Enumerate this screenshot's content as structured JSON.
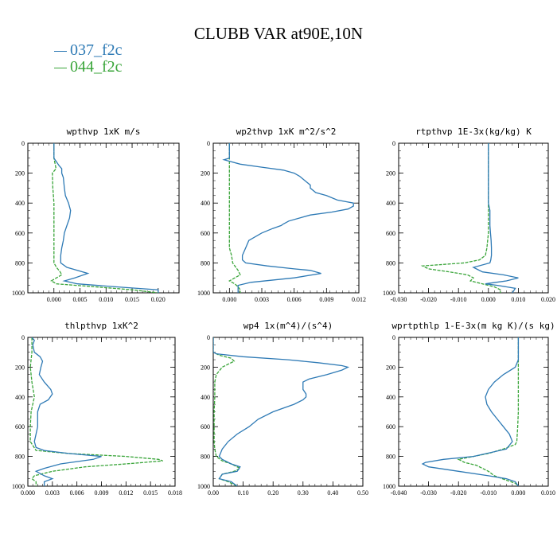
{
  "title": "CLUBB VAR at90E,10N",
  "legend": [
    {
      "label": "037_f2c",
      "color": "#2e7ab5"
    },
    {
      "label": "044_f2c",
      "color": "#3aa53a"
    }
  ],
  "chart_data": [
    {
      "type": "line",
      "title": "wpthvp   1xK m/s",
      "xlim": [
        -0.005,
        0.024
      ],
      "xticks": [
        "0.000",
        "0.005",
        "0.010",
        "0.015",
        "0.020"
      ],
      "xtick_values": [
        0,
        0.005,
        0.01,
        0.015,
        0.02
      ],
      "ylim": [
        1000,
        0
      ],
      "yticks": [
        "0",
        "200",
        "400",
        "600",
        "800",
        "1000"
      ],
      "ytick_values": [
        0,
        200,
        400,
        600,
        800,
        1000
      ],
      "series": [
        {
          "name": "037_f2c",
          "color": "#2e7ab5",
          "y": [
            0,
            100,
            150,
            170,
            200,
            230,
            300,
            350,
            400,
            450,
            500,
            550,
            600,
            650,
            700,
            750,
            800,
            830,
            850,
            870,
            900,
            920,
            940,
            960,
            980,
            1000
          ],
          "x": [
            0,
            0,
            0.001,
            0.0015,
            0.0015,
            0.0018,
            0.002,
            0.0022,
            0.0028,
            0.0032,
            0.003,
            0.0025,
            0.002,
            0.0018,
            0.0015,
            0.0013,
            0.0013,
            0.0025,
            0.0045,
            0.0065,
            0.004,
            0.002,
            0.0045,
            0.012,
            0.02,
            0.02
          ]
        },
        {
          "name": "044_f2c",
          "color": "#3aa53a",
          "y": [
            0,
            100,
            150,
            170,
            200,
            300,
            400,
            500,
            600,
            700,
            800,
            830,
            860,
            880,
            900,
            920,
            940,
            960,
            980,
            1000
          ],
          "x": [
            0,
            0,
            0.0003,
            0.0004,
            -0.0003,
            -0.0002,
            0,
            0,
            0,
            0,
            0,
            0.0005,
            0.0012,
            0.0015,
            0.0005,
            -0.0005,
            0.0005,
            0.008,
            0.015,
            0.02
          ]
        }
      ]
    },
    {
      "type": "line",
      "title": "wp2thvp   1xK m^2/s^2",
      "xlim": [
        -0.0015,
        0.012
      ],
      "xticks": [
        "0.000",
        "0.003",
        "0.006",
        "0.009",
        "0.012"
      ],
      "xtick_values": [
        0,
        0.003,
        0.006,
        0.009,
        0.012
      ],
      "ylim": [
        1000,
        0
      ],
      "yticks": [
        "0",
        "200",
        "400",
        "600",
        "800",
        "1000"
      ],
      "ytick_values": [
        0,
        200,
        400,
        600,
        800,
        1000
      ],
      "series": [
        {
          "name": "037_f2c",
          "color": "#2e7ab5",
          "y": [
            0,
            100,
            110,
            120,
            140,
            160,
            180,
            200,
            220,
            250,
            280,
            300,
            330,
            350,
            380,
            400,
            420,
            440,
            460,
            480,
            500,
            520,
            540,
            550,
            570,
            600,
            650,
            700,
            750,
            780,
            800,
            820,
            840,
            850,
            870,
            900,
            930,
            950,
            970,
            1000
          ],
          "x": [
            0,
            0,
            -0.0005,
            0,
            0.001,
            0.003,
            0.005,
            0.006,
            0.0065,
            0.007,
            0.0075,
            0.0075,
            0.008,
            0.009,
            0.01,
            0.0115,
            0.0115,
            0.011,
            0.0095,
            0.0075,
            0.0065,
            0.0055,
            0.005,
            0.0048,
            0.004,
            0.003,
            0.0018,
            0.0015,
            0.0012,
            0.0012,
            0.0015,
            0.0035,
            0.006,
            0.0075,
            0.0085,
            0.006,
            0.002,
            0.0008,
            0.0008,
            0.0008
          ]
        },
        {
          "name": "044_f2c",
          "color": "#3aa53a",
          "y": [
            0,
            100,
            200,
            300,
            400,
            500,
            600,
            700,
            750,
            800,
            820,
            850,
            880,
            900,
            920,
            940,
            960,
            980,
            1000
          ],
          "x": [
            0,
            0,
            0,
            0,
            0,
            0,
            0,
            0,
            0.0002,
            0.0003,
            0.0005,
            0.0008,
            0.001,
            0.0005,
            0,
            0.0005,
            0.0008,
            0.001,
            0.001
          ]
        }
      ]
    },
    {
      "type": "line",
      "title": "rtpthvp   1E-3x(kg/kg) K",
      "xlim": [
        -0.03,
        0.02
      ],
      "xticks": [
        "-0.030",
        "-0.020",
        "-0.010",
        "0.000",
        "0.010",
        "0.020"
      ],
      "xtick_values": [
        -0.03,
        -0.02,
        -0.01,
        0,
        0.01,
        0.02
      ],
      "ylim": [
        1000,
        0
      ],
      "yticks": [
        "0",
        "200",
        "400",
        "600",
        "800",
        "1000"
      ],
      "ytick_values": [
        0,
        200,
        400,
        600,
        800,
        1000
      ],
      "series": [
        {
          "name": "037_f2c",
          "color": "#2e7ab5",
          "y": [
            0,
            100,
            200,
            300,
            400,
            450,
            500,
            550,
            600,
            650,
            700,
            750,
            780,
            800,
            830,
            860,
            880,
            900,
            920,
            940,
            950,
            970,
            1000
          ],
          "x": [
            0,
            0,
            0,
            0,
            0,
            0.0005,
            0.0005,
            0.0005,
            0.0007,
            0.0009,
            0.001,
            0.001,
            0.0008,
            0.0005,
            -0.005,
            -0.002,
            0.005,
            0.01,
            0.006,
            -0.001,
            0.003,
            0.009,
            0.008
          ]
        },
        {
          "name": "044_f2c",
          "color": "#3aa53a",
          "y": [
            0,
            100,
            200,
            300,
            400,
            500,
            600,
            700,
            750,
            780,
            800,
            820,
            840,
            860,
            880,
            900,
            920,
            940,
            960,
            980,
            1000
          ],
          "x": [
            0,
            0,
            0,
            0,
            0,
            0,
            0,
            -0.0005,
            -0.001,
            -0.003,
            -0.008,
            -0.022,
            -0.02,
            -0.013,
            -0.007,
            -0.005,
            -0.006,
            -0.002,
            0.002,
            0.004,
            0.004
          ]
        }
      ]
    },
    {
      "type": "line",
      "title": "thlpthvp   1xK^2",
      "xlim": [
        0,
        0.018
      ],
      "xticks": [
        "0.000",
        "0.003",
        "0.006",
        "0.009",
        "0.012",
        "0.015",
        "0.018"
      ],
      "xtick_values": [
        0,
        0.003,
        0.006,
        0.009,
        0.012,
        0.015,
        0.018
      ],
      "ylim": [
        1000,
        0
      ],
      "yticks": [
        "0",
        "200",
        "400",
        "600",
        "800",
        "1000"
      ],
      "ytick_values": [
        0,
        200,
        400,
        600,
        800,
        1000
      ],
      "series": [
        {
          "name": "037_f2c",
          "color": "#2e7ab5",
          "y": [
            0,
            20,
            50,
            100,
            130,
            160,
            200,
            250,
            300,
            350,
            380,
            420,
            450,
            500,
            550,
            600,
            650,
            700,
            740,
            760,
            780,
            800,
            820,
            850,
            880,
            900,
            930,
            950,
            970,
            1000
          ],
          "x": [
            0.0005,
            0.0008,
            0.0006,
            0.0008,
            0.0015,
            0.0018,
            0.0016,
            0.0014,
            0.002,
            0.0028,
            0.003,
            0.0025,
            0.0015,
            0.0012,
            0.0012,
            0.0012,
            0.001,
            0.0008,
            0.001,
            0.002,
            0.005,
            0.009,
            0.008,
            0.004,
            0.002,
            0.001,
            0.002,
            0.003,
            0.002,
            0.002
          ]
        },
        {
          "name": "044_f2c",
          "color": "#3aa53a",
          "y": [
            0,
            50,
            100,
            150,
            200,
            300,
            400,
            500,
            600,
            700,
            760,
            780,
            800,
            820,
            830,
            850,
            870,
            900,
            930,
            950,
            970,
            1000
          ],
          "x": [
            0.0005,
            0.0005,
            0.0005,
            0.0004,
            0.0003,
            0.0005,
            0.0008,
            0.0004,
            0.0003,
            0.0003,
            0.001,
            0.005,
            0.012,
            0.016,
            0.0165,
            0.012,
            0.007,
            0.003,
            0.0008,
            0.0005,
            0.001,
            0.001
          ]
        }
      ]
    },
    {
      "type": "line",
      "title": "wp4   1x(m^4)/(s^4)",
      "xlim": [
        0,
        0.5
      ],
      "xticks": [
        "0.00",
        "0.10",
        "0.20",
        "0.30",
        "0.40",
        "0.50"
      ],
      "xtick_values": [
        0,
        0.1,
        0.2,
        0.3,
        0.4,
        0.5
      ],
      "ylim": [
        1000,
        0
      ],
      "yticks": [
        "0",
        "200",
        "400",
        "600",
        "800",
        "1000"
      ],
      "ytick_values": [
        0,
        200,
        400,
        600,
        800,
        1000
      ],
      "series": [
        {
          "name": "037_f2c",
          "color": "#2e7ab5",
          "y": [
            0,
            100,
            110,
            130,
            150,
            170,
            190,
            200,
            220,
            250,
            280,
            300,
            330,
            350,
            380,
            400,
            420,
            450,
            500,
            550,
            600,
            650,
            700,
            750,
            800,
            820,
            850,
            870,
            900,
            920,
            950,
            970,
            1000
          ],
          "x": [
            0,
            0,
            0.01,
            0.1,
            0.25,
            0.35,
            0.43,
            0.45,
            0.43,
            0.38,
            0.32,
            0.3,
            0.3,
            0.3,
            0.31,
            0.31,
            0.3,
            0.27,
            0.2,
            0.15,
            0.12,
            0.08,
            0.05,
            0.03,
            0.02,
            0.03,
            0.06,
            0.09,
            0.08,
            0.03,
            0.02,
            0.06,
            0.08
          ]
        },
        {
          "name": "044_f2c",
          "color": "#3aa53a",
          "y": [
            0,
            100,
            120,
            140,
            160,
            200,
            250,
            300,
            400,
            500,
            600,
            700,
            750,
            800,
            830,
            850,
            880,
            900,
            920,
            950,
            970,
            1000
          ],
          "x": [
            0,
            0,
            0.02,
            0.06,
            0.07,
            0.03,
            0.01,
            0.005,
            0.005,
            0.003,
            0.003,
            0.003,
            0.005,
            0.01,
            0.03,
            0.06,
            0.09,
            0.07,
            0.03,
            0.02,
            0.05,
            0.08
          ]
        }
      ]
    },
    {
      "type": "line",
      "title": "wprtpthlp   1-E-3x(m kg K)/(s kg)",
      "xlim": [
        -0.04,
        0.01
      ],
      "xticks": [
        "-0.040",
        "-0.030",
        "-0.020",
        "-0.010",
        "0.000",
        "0.010"
      ],
      "xtick_values": [
        -0.04,
        -0.03,
        -0.02,
        -0.01,
        0,
        0.01
      ],
      "ylim": [
        1000,
        0
      ],
      "yticks": [
        "0",
        "200",
        "400",
        "600",
        "800",
        "1000"
      ],
      "ytick_values": [
        0,
        200,
        400,
        600,
        800,
        1000
      ],
      "series": [
        {
          "name": "037_f2c",
          "color": "#2e7ab5",
          "y": [
            0,
            100,
            150,
            200,
            250,
            300,
            350,
            400,
            450,
            500,
            550,
            600,
            650,
            700,
            750,
            800,
            820,
            840,
            850,
            870,
            900,
            930,
            950,
            970,
            1000
          ],
          "x": [
            0,
            0,
            0,
            -0.001,
            -0.005,
            -0.008,
            -0.01,
            -0.011,
            -0.0105,
            -0.009,
            -0.007,
            -0.005,
            -0.003,
            -0.002,
            -0.004,
            -0.015,
            -0.025,
            -0.031,
            -0.032,
            -0.03,
            -0.02,
            -0.01,
            -0.004,
            -0.001,
            0
          ]
        },
        {
          "name": "044_f2c",
          "color": "#3aa53a",
          "y": [
            0,
            100,
            200,
            300,
            400,
            500,
            600,
            700,
            720,
            750,
            780,
            800,
            820,
            840,
            860,
            880,
            900,
            930,
            960,
            980,
            1000
          ],
          "x": [
            0,
            0,
            0,
            0,
            0,
            0,
            -0.0002,
            -0.0005,
            -0.001,
            -0.005,
            -0.01,
            -0.015,
            -0.02,
            -0.018,
            -0.014,
            -0.012,
            -0.01,
            -0.008,
            -0.004,
            -0.001,
            0
          ]
        }
      ]
    }
  ]
}
